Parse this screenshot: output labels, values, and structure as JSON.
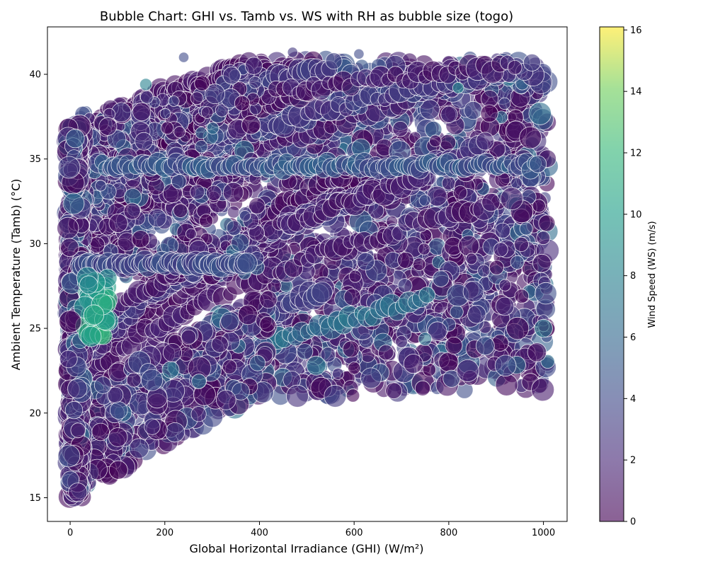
{
  "chart_data": {
    "type": "scatter",
    "title": "Bubble Chart: GHI vs. Tamb vs. WS with RH as bubble size (togo)",
    "xlabel": "Global Horizontal Irradiance (GHI) (W/m²)",
    "ylabel": "Ambient Temperature (Tamb) (°C)",
    "colorbar_label": "Wind Speed (WS) (m/s)",
    "xlim": [
      -48,
      1050
    ],
    "ylim": [
      13.6,
      42.8
    ],
    "x_ticks": [
      0,
      200,
      400,
      600,
      800,
      1000
    ],
    "y_ticks": [
      15,
      20,
      25,
      30,
      35,
      40
    ],
    "colorbar_range": [
      0,
      16.1
    ],
    "colorbar_ticks": [
      0,
      2,
      4,
      6,
      8,
      10,
      12,
      14,
      16
    ],
    "colormap": "viridis",
    "marker_alpha": 0.6,
    "marker_edge_color": "#ffffff",
    "grid": false,
    "legend": "none",
    "series_groups": [
      {
        "description": "night low-GHI column",
        "ghi_range": [
          0,
          25
        ],
        "tamb_range": [
          15,
          37
        ],
        "ws_typical": [
          0.5,
          5
        ]
      },
      {
        "description": "morning/evening diagonal bands",
        "ghi_range": [
          25,
          1000
        ],
        "tamb_range": [
          15,
          41
        ],
        "ws_typical": [
          0.5,
          6
        ]
      },
      {
        "description": "high-GHI midday block",
        "ghi_range": [
          400,
          1010
        ],
        "tamb_range": [
          21,
          41
        ],
        "ws_typical": [
          0.5,
          6
        ]
      },
      {
        "description": "high wind patch",
        "ghi_range": [
          30,
          80
        ],
        "tamb_range": [
          24.5,
          28
        ],
        "ws_typical": [
          9,
          12
        ]
      }
    ],
    "highlight_points": [
      {
        "x": 0,
        "y": 25.4,
        "ws": 0.3,
        "rh": 90
      },
      {
        "x": 50,
        "y": 25.8,
        "ws": 11,
        "rh": 80
      },
      {
        "x": 160,
        "y": 39.4,
        "ws": 8,
        "rh": 40
      },
      {
        "x": 820,
        "y": 39.2,
        "ws": 8.5,
        "rh": 35
      },
      {
        "x": 1000,
        "y": 25,
        "ws": 7.5,
        "rh": 70
      },
      {
        "x": 480,
        "y": 21,
        "ws": 2.5,
        "rh": 90
      },
      {
        "x": 560,
        "y": 21,
        "ws": 3,
        "rh": 90
      },
      {
        "x": 840,
        "y": 22.5,
        "ws": 2,
        "rh": 90
      },
      {
        "x": 920,
        "y": 22.8,
        "ws": 4,
        "rh": 85
      },
      {
        "x": 240,
        "y": 41,
        "ws": 4,
        "rh": 30
      },
      {
        "x": 470,
        "y": 41.3,
        "ws": 3,
        "rh": 30
      },
      {
        "x": 610,
        "y": 41.2,
        "ws": 4,
        "rh": 30
      }
    ]
  }
}
